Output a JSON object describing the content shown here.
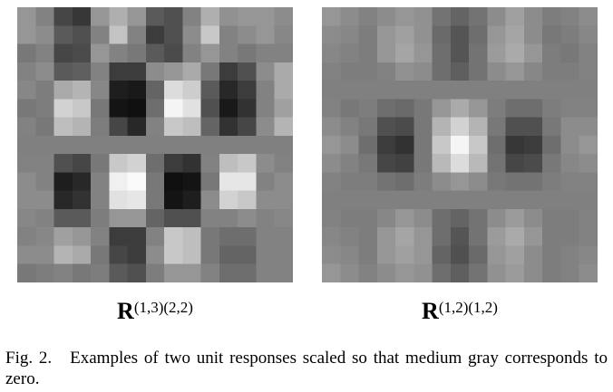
{
  "figures": [
    {
      "label_symbol": "R",
      "label_superscript": "(1,3)(2,2)",
      "grid_size": 15,
      "rows": [
        [
          150,
          130,
          70,
          55,
          150,
          175,
          150,
          90,
          80,
          130,
          175,
          145,
          150,
          150,
          140
        ],
        [
          150,
          140,
          90,
          80,
          130,
          195,
          130,
          60,
          80,
          140,
          200,
          130,
          140,
          150,
          135
        ],
        [
          120,
          130,
          70,
          75,
          150,
          130,
          120,
          90,
          75,
          130,
          150,
          130,
          120,
          130,
          130
        ],
        [
          130,
          140,
          90,
          95,
          130,
          60,
          60,
          140,
          150,
          170,
          120,
          60,
          80,
          140,
          170
        ],
        [
          135,
          125,
          170,
          180,
          135,
          30,
          25,
          100,
          220,
          205,
          90,
          40,
          60,
          130,
          170
        ],
        [
          120,
          125,
          210,
          200,
          120,
          20,
          15,
          110,
          245,
          225,
          80,
          25,
          50,
          130,
          160
        ],
        [
          130,
          120,
          190,
          180,
          125,
          70,
          40,
          130,
          200,
          190,
          100,
          50,
          70,
          140,
          180
        ],
        [
          128,
          128,
          128,
          128,
          128,
          128,
          128,
          128,
          128,
          128,
          128,
          128,
          128,
          128,
          128
        ],
        [
          130,
          130,
          80,
          70,
          120,
          200,
          210,
          110,
          60,
          50,
          130,
          190,
          200,
          140,
          130
        ],
        [
          140,
          130,
          30,
          40,
          130,
          240,
          250,
          120,
          15,
          20,
          120,
          230,
          230,
          130,
          140
        ],
        [
          140,
          140,
          40,
          50,
          130,
          225,
          230,
          120,
          20,
          30,
          140,
          210,
          200,
          140,
          140
        ],
        [
          135,
          130,
          90,
          90,
          125,
          150,
          150,
          100,
          80,
          80,
          130,
          130,
          140,
          130,
          135
        ],
        [
          130,
          135,
          160,
          150,
          130,
          60,
          60,
          130,
          200,
          190,
          120,
          110,
          110,
          130,
          130
        ],
        [
          140,
          140,
          180,
          170,
          120,
          70,
          60,
          140,
          200,
          190,
          120,
          100,
          100,
          130,
          130
        ],
        [
          120,
          125,
          130,
          120,
          125,
          90,
          80,
          125,
          150,
          150,
          130,
          110,
          110,
          130,
          130
        ]
      ]
    },
    {
      "label_symbol": "R",
      "label_superscript": "(1,2)(1,2)",
      "grid_size": 15,
      "rows": [
        [
          150,
          140,
          130,
          140,
          150,
          145,
          115,
          100,
          115,
          140,
          160,
          140,
          125,
          130,
          140
        ],
        [
          140,
          135,
          125,
          150,
          160,
          145,
          105,
          85,
          110,
          150,
          165,
          140,
          120,
          125,
          135
        ],
        [
          135,
          130,
          125,
          150,
          165,
          150,
          110,
          85,
          115,
          155,
          170,
          150,
          125,
          120,
          130
        ],
        [
          130,
          125,
          125,
          130,
          145,
          140,
          110,
          95,
          115,
          140,
          150,
          135,
          125,
          125,
          130
        ],
        [
          128,
          128,
          128,
          128,
          128,
          128,
          128,
          128,
          128,
          128,
          128,
          128,
          128,
          128,
          128
        ],
        [
          130,
          120,
          125,
          110,
          105,
          120,
          150,
          170,
          150,
          125,
          110,
          110,
          125,
          130,
          130
        ],
        [
          140,
          130,
          120,
          80,
          75,
          120,
          180,
          210,
          180,
          120,
          80,
          80,
          120,
          140,
          140
        ],
        [
          150,
          140,
          110,
          60,
          50,
          120,
          200,
          245,
          200,
          110,
          55,
          60,
          110,
          140,
          150
        ],
        [
          140,
          130,
          120,
          70,
          65,
          120,
          185,
          220,
          185,
          115,
          70,
          75,
          120,
          135,
          140
        ],
        [
          130,
          125,
          125,
          115,
          110,
          125,
          140,
          150,
          140,
          120,
          115,
          115,
          125,
          130,
          130
        ],
        [
          128,
          128,
          128,
          128,
          128,
          128,
          128,
          128,
          128,
          128,
          128,
          128,
          128,
          128,
          128
        ],
        [
          130,
          125,
          125,
          135,
          150,
          140,
          110,
          100,
          115,
          140,
          155,
          140,
          125,
          125,
          130
        ],
        [
          135,
          130,
          125,
          150,
          165,
          150,
          110,
          85,
          115,
          155,
          170,
          150,
          125,
          125,
          130
        ],
        [
          140,
          135,
          125,
          150,
          160,
          150,
          100,
          80,
          105,
          150,
          160,
          140,
          125,
          130,
          135
        ],
        [
          150,
          140,
          130,
          140,
          150,
          145,
          110,
          95,
          115,
          145,
          155,
          140,
          125,
          130,
          140
        ]
      ]
    }
  ],
  "caption": {
    "fig_label": "Fig. 2.",
    "text": "Examples of two unit responses scaled so that medium gray corresponds to zero."
  }
}
